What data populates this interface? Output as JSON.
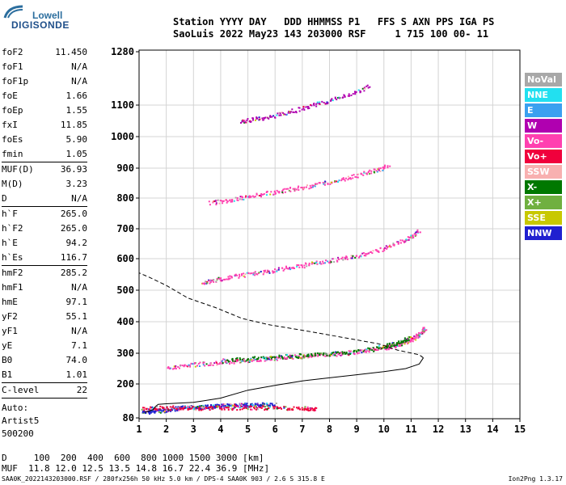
{
  "header": {
    "line1": "Station YYYY DAY   DDD HHMMSS P1   FFS S AXN PPS IGA PS",
    "line2": "SaoLuis 2022 May23 143 203000 RSF     1 715 100 00- 11"
  },
  "logo": {
    "brand_top": "Lowell",
    "brand_bottom": "DIGISONDE"
  },
  "params": {
    "group1": [
      {
        "name": "foF2",
        "value": "11.450"
      },
      {
        "name": "foF1",
        "value": "N/A"
      },
      {
        "name": "foF1p",
        "value": "N/A"
      },
      {
        "name": "foE",
        "value": "1.66"
      },
      {
        "name": "foEp",
        "value": "1.55"
      },
      {
        "name": "fxI",
        "value": "11.85"
      },
      {
        "name": "foEs",
        "value": "5.90"
      },
      {
        "name": "fmin",
        "value": "1.05"
      }
    ],
    "group2": [
      {
        "name": "MUF(D)",
        "value": "36.93"
      },
      {
        "name": "M(D)",
        "value": "3.23"
      },
      {
        "name": "D",
        "value": "N/A"
      }
    ],
    "group3": [
      {
        "name": "h`F",
        "value": "265.0"
      },
      {
        "name": "h`F2",
        "value": "265.0"
      },
      {
        "name": "h`E",
        "value": "94.2"
      },
      {
        "name": "h`Es",
        "value": "116.7"
      }
    ],
    "group4": [
      {
        "name": "hmF2",
        "value": "285.2"
      },
      {
        "name": "hmF1",
        "value": "N/A"
      },
      {
        "name": "hmE",
        "value": "97.1"
      },
      {
        "name": "yF2",
        "value": "55.1"
      },
      {
        "name": "yF1",
        "value": "N/A"
      },
      {
        "name": "yE",
        "value": "7.1"
      },
      {
        "name": "B0",
        "value": "74.0"
      },
      {
        "name": "B1",
        "value": "1.01"
      }
    ],
    "group5": [
      {
        "name": "C-level",
        "value": "22"
      }
    ],
    "auto_lines": [
      "Auto:",
      "Artist5",
      "500200"
    ]
  },
  "legend": [
    {
      "label": "NoVal",
      "color": "#a8a8a8"
    },
    {
      "label": "NNE",
      "color": "#22e0f0"
    },
    {
      "label": "E",
      "color": "#3aa0f0"
    },
    {
      "label": "W",
      "color": "#b000b0"
    },
    {
      "label": "Vo-",
      "color": "#ff40b0"
    },
    {
      "label": "Vo+",
      "color": "#f0003c"
    },
    {
      "label": "SSW",
      "color": "#f8b0b0"
    },
    {
      "label": "X-",
      "color": "#007800"
    },
    {
      "label": "X+",
      "color": "#70b040"
    },
    {
      "label": "SSE",
      "color": "#c8c800"
    },
    {
      "label": "NNW",
      "color": "#2020d0"
    }
  ],
  "chart_data": {
    "type": "scatter",
    "title": "",
    "xlabel": "",
    "ylabel": "",
    "xlim": [
      1,
      15
    ],
    "ylim": [
      80,
      1300
    ],
    "xticks": [
      1,
      2,
      3,
      4,
      5,
      6,
      7,
      8,
      9,
      10,
      11,
      12,
      13,
      14,
      15
    ],
    "yticks": [
      80,
      200,
      300,
      400,
      500,
      600,
      700,
      800,
      900,
      1000,
      1100,
      1280
    ],
    "grid": true,
    "traces": [
      {
        "name": "F2 ordinary",
        "color": "#ff40b0",
        "points": [
          [
            2.0,
            255
          ],
          [
            3.0,
            264
          ],
          [
            4.0,
            272
          ],
          [
            5.0,
            280
          ],
          [
            6.0,
            286
          ],
          [
            7.0,
            292
          ],
          [
            8.0,
            298
          ],
          [
            9.0,
            306
          ],
          [
            10.0,
            318
          ],
          [
            10.5,
            328
          ],
          [
            11.0,
            345
          ],
          [
            11.3,
            362
          ],
          [
            11.5,
            382
          ]
        ]
      },
      {
        "name": "F2 extraordinary",
        "color": "#007800",
        "points": [
          [
            4.0,
            277
          ],
          [
            5.0,
            283
          ],
          [
            6.0,
            289
          ],
          [
            7.0,
            294
          ],
          [
            8.0,
            300
          ],
          [
            9.0,
            309
          ],
          [
            10.0,
            324
          ],
          [
            10.5,
            335
          ],
          [
            11.0,
            352
          ]
        ]
      },
      {
        "name": "F2 second hop",
        "color": "#ff40b0",
        "points": [
          [
            3.3,
            525
          ],
          [
            4.0,
            538
          ],
          [
            5.0,
            552
          ],
          [
            6.0,
            565
          ],
          [
            7.0,
            580
          ],
          [
            8.0,
            595
          ],
          [
            9.0,
            612
          ],
          [
            10.0,
            635
          ],
          [
            10.8,
            665
          ],
          [
            11.3,
            695
          ]
        ]
      },
      {
        "name": "F2 third hop",
        "color": "#ff40b0",
        "points": [
          [
            3.6,
            785
          ],
          [
            4.5,
            798
          ],
          [
            5.5,
            815
          ],
          [
            6.5,
            830
          ],
          [
            7.5,
            845
          ],
          [
            8.5,
            865
          ],
          [
            9.5,
            890
          ],
          [
            10.2,
            910
          ]
        ]
      },
      {
        "name": "F2 fourth hop",
        "color": "#b000b0",
        "points": [
          [
            4.7,
            1050
          ],
          [
            5.5,
            1060
          ],
          [
            6.5,
            1080
          ],
          [
            7.5,
            1105
          ],
          [
            8.5,
            1130
          ],
          [
            9.5,
            1165
          ]
        ]
      },
      {
        "name": "E layer",
        "color": "#2020d0",
        "points": [
          [
            1.1,
            101
          ],
          [
            1.6,
            106
          ],
          [
            2.0,
            110
          ],
          [
            2.5,
            117
          ],
          [
            3.0,
            119
          ],
          [
            3.5,
            121
          ],
          [
            4.0,
            124
          ],
          [
            4.5,
            126
          ],
          [
            5.0,
            128
          ],
          [
            5.5,
            128
          ],
          [
            6.0,
            128
          ]
        ]
      },
      {
        "name": "Es",
        "color": "#f0003c",
        "points": [
          [
            1.1,
            115
          ],
          [
            2.0,
            118
          ],
          [
            3.0,
            117
          ],
          [
            4.0,
            118
          ],
          [
            5.0,
            118
          ],
          [
            6.0,
            118
          ],
          [
            7.0,
            116
          ],
          [
            7.5,
            115
          ]
        ]
      }
    ],
    "profile_solid": [
      [
        1.2,
        100
      ],
      [
        1.5,
        108
      ],
      [
        1.6,
        120
      ],
      [
        1.7,
        128
      ],
      [
        2.0,
        130
      ],
      [
        3.0,
        135
      ],
      [
        4.0,
        150
      ],
      [
        5.0,
        178
      ],
      [
        6.0,
        195
      ],
      [
        7.0,
        210
      ],
      [
        8.0,
        220
      ],
      [
        9.0,
        230
      ],
      [
        10.0,
        240
      ],
      [
        10.8,
        250
      ],
      [
        11.3,
        265
      ],
      [
        11.45,
        285
      ]
    ],
    "profile_dashed": [
      [
        11.45,
        285
      ],
      [
        11.3,
        295
      ],
      [
        10.5,
        310
      ],
      [
        9.8,
        330
      ],
      [
        8.5,
        350
      ],
      [
        7.2,
        370
      ],
      [
        5.8,
        390
      ],
      [
        4.8,
        410
      ],
      [
        3.8,
        445
      ],
      [
        2.8,
        475
      ],
      [
        2.0,
        515
      ],
      [
        1.4,
        540
      ],
      [
        1.0,
        555
      ]
    ]
  },
  "footer": {
    "line1": "D     100  200  400  600  800 1000 1500 3000 [km]",
    "line2": "MUF  11.8 12.0 12.5 13.5 14.8 16.7 22.4 36.9 [MHz]",
    "line3": "SAA0K_2022143203000.RSF / 280fx256h 50 kHz 5.0 km / DPS-4 SAA0K 903 / 2.6 S 315.8 E",
    "version": "Ion2Png 1.3.17"
  }
}
